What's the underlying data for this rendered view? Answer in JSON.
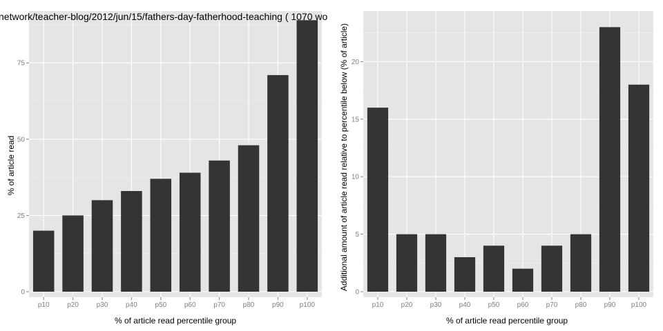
{
  "chart_data": [
    {
      "type": "bar",
      "title": "network/teacher-blog/2012/jun/15/fathers-day-fatherhood-teaching ( 1070 wo",
      "xlabel": "% of article read percentile group",
      "ylabel": "% of article read",
      "categories": [
        "p10",
        "p20",
        "p30",
        "p40",
        "p50",
        "p60",
        "p70",
        "p80",
        "p90",
        "p100"
      ],
      "values": [
        20,
        25,
        30,
        33,
        37,
        39,
        43,
        48,
        71,
        89
      ],
      "ylim": [
        0,
        92
      ],
      "yticks": [
        0,
        25,
        50,
        75
      ],
      "ytick_labels": [
        "0",
        "25",
        "50",
        "75"
      ],
      "grid": true,
      "bar_color": "#333333",
      "panel_color": "#e5e5e5"
    },
    {
      "type": "bar",
      "title": "",
      "xlabel": "% of article read percentile group",
      "ylabel": "Additional amount of article read relative to percentile below (% of article)",
      "categories": [
        "p10",
        "p20",
        "p30",
        "p40",
        "p50",
        "p60",
        "p70",
        "p80",
        "p90",
        "p100"
      ],
      "values": [
        16,
        5,
        5,
        3,
        4,
        2,
        4,
        5,
        23,
        18
      ],
      "ylim": [
        0,
        24.4
      ],
      "yticks": [
        0,
        5,
        10,
        15,
        20
      ],
      "ytick_labels": [
        "0",
        "5",
        "10",
        "15",
        "20"
      ],
      "grid": true,
      "bar_color": "#333333",
      "panel_color": "#e5e5e5"
    }
  ]
}
